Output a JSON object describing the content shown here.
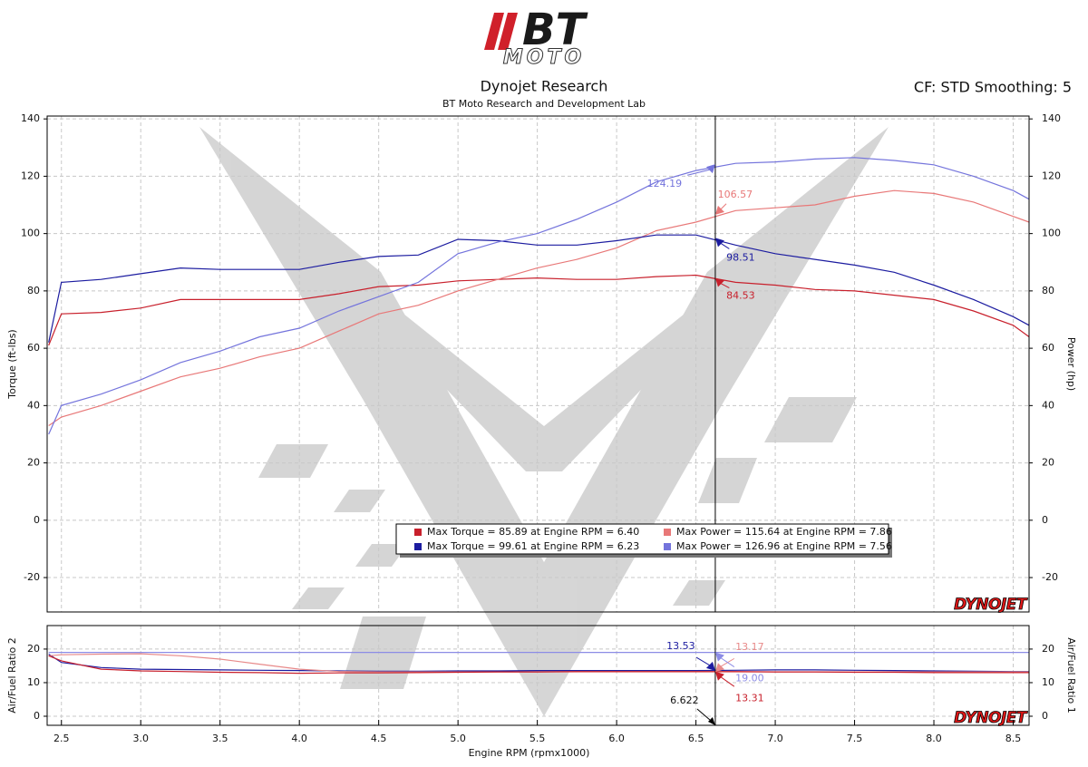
{
  "logo": {
    "main": "BT",
    "sub": "MOTO"
  },
  "chart_data": [
    {
      "type": "line",
      "title": "Dynojet Research",
      "subtitle": "BT Moto Research and Development Lab",
      "header_right": "CF: STD Smoothing: 5",
      "watermark": "DYNOJET",
      "y_label": "Torque (ft-lbs)",
      "y2_label": "Power (hp)",
      "ylim": [
        -32,
        141
      ],
      "yticks": [
        -20,
        0,
        20,
        40,
        60,
        80,
        100,
        120,
        140
      ],
      "y2lim": [
        -32,
        141
      ],
      "y2ticks": [
        -20,
        0,
        20,
        40,
        60,
        80,
        100,
        120,
        140
      ],
      "grid": true,
      "x": [
        2.42,
        2.5,
        2.75,
        3.0,
        3.25,
        3.5,
        3.75,
        4.0,
        4.25,
        4.5,
        4.75,
        5.0,
        5.25,
        5.5,
        5.75,
        6.0,
        6.25,
        6.5,
        6.75,
        7.0,
        7.25,
        7.5,
        7.75,
        8.0,
        8.25,
        8.5,
        8.6
      ],
      "series": [
        {
          "name": "Max Torque = 85.89 at Engine RPM = 6.40",
          "color": "#c8202c",
          "axis": "y",
          "values": [
            61,
            72,
            72.5,
            74,
            77,
            77,
            77,
            77,
            79,
            81.5,
            82,
            83.5,
            84,
            84.5,
            84,
            84,
            85,
            85.5,
            83,
            82,
            80.5,
            80,
            78.5,
            77,
            73,
            68,
            64
          ],
          "cursor_value": 84.53
        },
        {
          "name": "Max Power = 115.64 at Engine RPM = 7.86",
          "color": "#e87878",
          "axis": "y2",
          "values": [
            33,
            36,
            40,
            45,
            50,
            53,
            57,
            60,
            66,
            72,
            75,
            80,
            84,
            88,
            91,
            95,
            101,
            104,
            108,
            109,
            110,
            113,
            115,
            114,
            111,
            106,
            104
          ],
          "cursor_value": 106.57
        },
        {
          "name": "Max Torque = 99.61 at Engine RPM = 6.23",
          "color": "#1c1ca0",
          "axis": "y",
          "values": [
            62,
            83,
            84,
            86,
            88,
            87.5,
            87.5,
            87.5,
            90,
            92,
            92.5,
            98,
            97.5,
            96,
            96,
            97.5,
            99.5,
            99.5,
            96,
            93,
            91,
            89,
            86.5,
            82,
            77,
            71,
            68
          ],
          "cursor_value": 98.51
        },
        {
          "name": "Max Power = 126.96 at Engine RPM = 7.56",
          "color": "#7474dc",
          "axis": "y2",
          "values": [
            30,
            40,
            44,
            49,
            55,
            59,
            64,
            67,
            73,
            78,
            83,
            93,
            97,
            100,
            105,
            111,
            118,
            122,
            124.5,
            125,
            126,
            126.5,
            125.5,
            124,
            120,
            115,
            112
          ],
          "cursor_value": 124.19
        }
      ]
    },
    {
      "type": "line",
      "watermark": "DYNOJET",
      "x_label": "Engine RPM (rpmx1000)",
      "y_label": "Air/Fuel Ratio 2",
      "y2_label": "Air/Fuel Ratio 1",
      "xlim": [
        2.41,
        8.6
      ],
      "xticks": [
        2.5,
        {
          "value": 3,
          "label": "3.0"
        },
        3.5,
        {
          "value": 4,
          "label": "4.0"
        },
        4.5,
        {
          "value": 5,
          "label": "5.0"
        },
        5.5,
        {
          "value": 6,
          "label": "6.0"
        },
        6.5,
        {
          "value": 7,
          "label": "7.0"
        },
        7.5,
        {
          "value": 8,
          "label": "8.0"
        },
        8.5
      ],
      "ylim": [
        -2.7,
        27
      ],
      "yticks": [
        0,
        10,
        20
      ],
      "y2lim": [
        -2.7,
        27
      ],
      "y2ticks": [
        0,
        10,
        20
      ],
      "grid": true,
      "cursor_x": 6.622,
      "x": [
        2.42,
        2.5,
        2.75,
        3.0,
        3.25,
        3.5,
        3.75,
        4.0,
        4.25,
        4.5,
        4.75,
        5.0,
        5.25,
        5.5,
        5.75,
        6.0,
        6.25,
        6.5,
        6.75,
        7.0,
        7.25,
        7.5,
        7.75,
        8.0,
        8.25,
        8.5,
        8.6
      ],
      "series": [
        {
          "color": "#1c1ca0",
          "axis": "y",
          "values": [
            18.5,
            16,
            14.5,
            14,
            13.9,
            13.8,
            13.7,
            13.6,
            13.5,
            13.4,
            13.4,
            13.5,
            13.5,
            13.6,
            13.6,
            13.6,
            13.6,
            13.6,
            13.7,
            13.8,
            13.8,
            13.7,
            13.6,
            13.5,
            13.4,
            13.3,
            13.3
          ],
          "cursor_value": 13.53
        },
        {
          "color": "#e88a8a",
          "axis": "y2",
          "values": [
            18,
            18.3,
            18.5,
            18.6,
            18,
            17,
            15.5,
            14,
            13.3,
            13.2,
            13.2,
            13.2,
            13.2,
            13.2,
            13.2,
            13.2,
            13.2,
            13.2,
            13.2,
            13.2,
            13.2,
            13.2,
            13.2,
            13.2,
            13.2,
            13.2,
            13.2
          ],
          "cursor_value": 13.17
        },
        {
          "color": "#8c8ce6",
          "axis": "y2",
          "values": [
            19,
            19,
            19,
            19,
            19,
            19,
            19,
            19,
            19,
            19,
            19,
            19,
            19,
            19,
            19,
            19,
            19,
            19,
            19,
            19,
            19,
            19,
            19,
            19,
            19,
            19,
            19
          ],
          "cursor_value": 19,
          "cursor_value_label": "19.00"
        },
        {
          "color": "#c8202c",
          "axis": "y",
          "values": [
            18,
            16.5,
            14,
            13.5,
            13.3,
            13.1,
            13,
            12.8,
            12.9,
            12.9,
            13,
            13.1,
            13.2,
            13.2,
            13.3,
            13.3,
            13.3,
            13.3,
            13.3,
            13.2,
            13.2,
            13.1,
            13.1,
            13,
            13,
            13,
            13
          ],
          "cursor_value": 13.31
        }
      ]
    }
  ]
}
